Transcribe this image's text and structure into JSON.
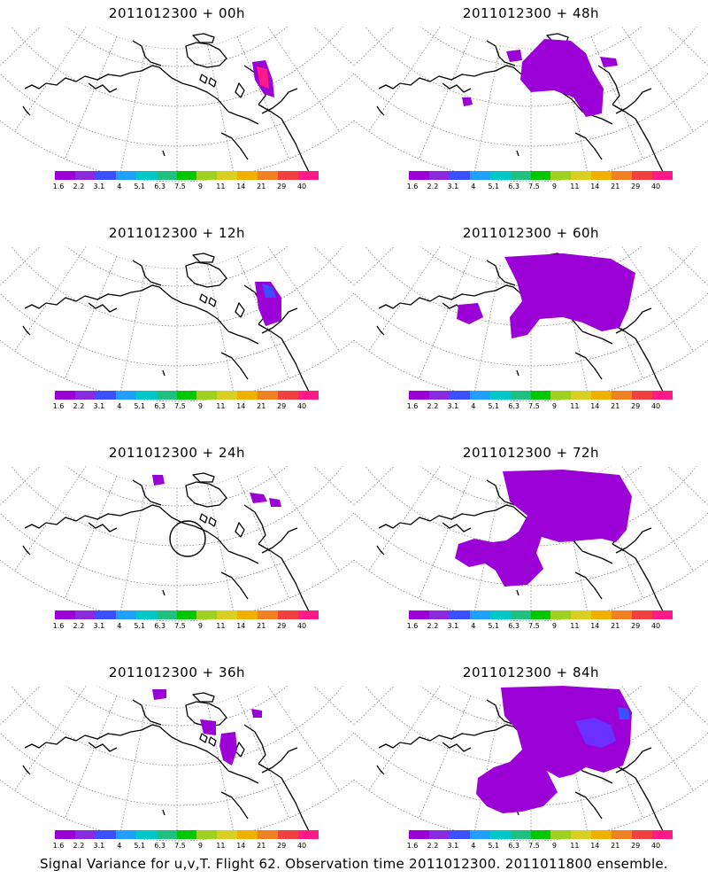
{
  "panels": [
    {
      "title": "2011012300 + 00h"
    },
    {
      "title": "2011012300 + 48h"
    },
    {
      "title": "2011012300 + 12h"
    },
    {
      "title": "2011012300 + 60h"
    },
    {
      "title": "2011012300 + 24h"
    },
    {
      "title": "2011012300 + 72h"
    },
    {
      "title": "2011012300 + 36h"
    },
    {
      "title": "2011012300 + 84h"
    }
  ],
  "colorbar": {
    "labels": [
      "1.6",
      "2.2",
      "3.1",
      "4",
      "5.1",
      "6.3",
      "7.5",
      "9",
      "11",
      "14",
      "21",
      "29",
      "40"
    ],
    "colors": [
      "#9b00d6",
      "#8a2be2",
      "#3a50ff",
      "#1ea0ff",
      "#00c8c8",
      "#20c080",
      "#00c800",
      "#a0d020",
      "#d8d020",
      "#f0b000",
      "#f08020",
      "#f04040",
      "#ff1a88"
    ]
  },
  "footer": "Signal Variance for u,v,T. Flight 62. Observation time 2011012300. 2011011800 ensemble.",
  "colors": {
    "signal_low": "#9b00d6",
    "signal_mid": "#6a30ff",
    "signal_high": "#ff1a88"
  }
}
